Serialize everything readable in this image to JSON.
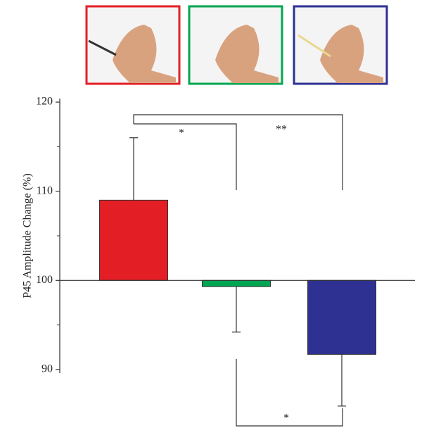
{
  "chart_data": {
    "type": "bar",
    "y_label": "P45 Amplitude Change (%)",
    "categories": [
      null,
      null,
      null
    ],
    "values": [
      109,
      99.3,
      91.7
    ],
    "errors": [
      7,
      5.1,
      5.8
    ],
    "colors": [
      "#e31e24",
      "#00a651",
      "#2e3192"
    ],
    "baseline": 100,
    "ylim": [
      89.6,
      120.4
    ],
    "yticks": [
      90,
      100,
      110,
      120
    ],
    "yminor": [
      95,
      105,
      115
    ],
    "annotations": [
      "*",
      "**",
      "*"
    ]
  }
}
